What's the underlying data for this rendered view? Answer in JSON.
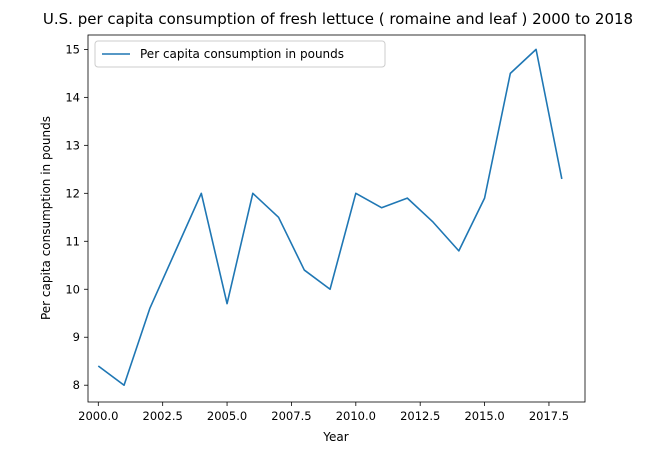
{
  "chart_data": {
    "type": "line",
    "title": "U.S. per capita consumption of fresh lettuce ( romaine and leaf ) 2000 to 2018",
    "xlabel": "Year",
    "ylabel": "Per capita consumption in pounds",
    "xlim": [
      1999.6,
      2018.9
    ],
    "ylim": [
      7.65,
      15.3
    ],
    "x_ticks": [
      2000,
      2002.5,
      2005,
      2007.5,
      2010,
      2012.5,
      2015,
      2017.5
    ],
    "x_tick_labels": [
      "2000.0",
      "2002.5",
      "2005.0",
      "2007.5",
      "2010.0",
      "2012.5",
      "2015.0",
      "2017.5"
    ],
    "y_ticks": [
      8,
      9,
      10,
      11,
      12,
      13,
      14,
      15
    ],
    "y_tick_labels": [
      "8",
      "9",
      "10",
      "11",
      "12",
      "13",
      "14",
      "15"
    ],
    "grid": false,
    "legend_position": "top-left",
    "series": [
      {
        "name": "Per capita consumption in pounds",
        "color": "#1f77b4",
        "x": [
          2000,
          2001,
          2002,
          2003,
          2004,
          2005,
          2006,
          2007,
          2008,
          2009,
          2010,
          2011,
          2012,
          2013,
          2014,
          2015,
          2016,
          2017,
          2018
        ],
        "values": [
          8.4,
          8.0,
          9.6,
          10.8,
          12.0,
          9.7,
          12.0,
          11.5,
          10.4,
          10.0,
          12.0,
          11.7,
          11.9,
          11.4,
          10.8,
          11.9,
          14.5,
          15.0,
          12.3
        ]
      }
    ]
  }
}
